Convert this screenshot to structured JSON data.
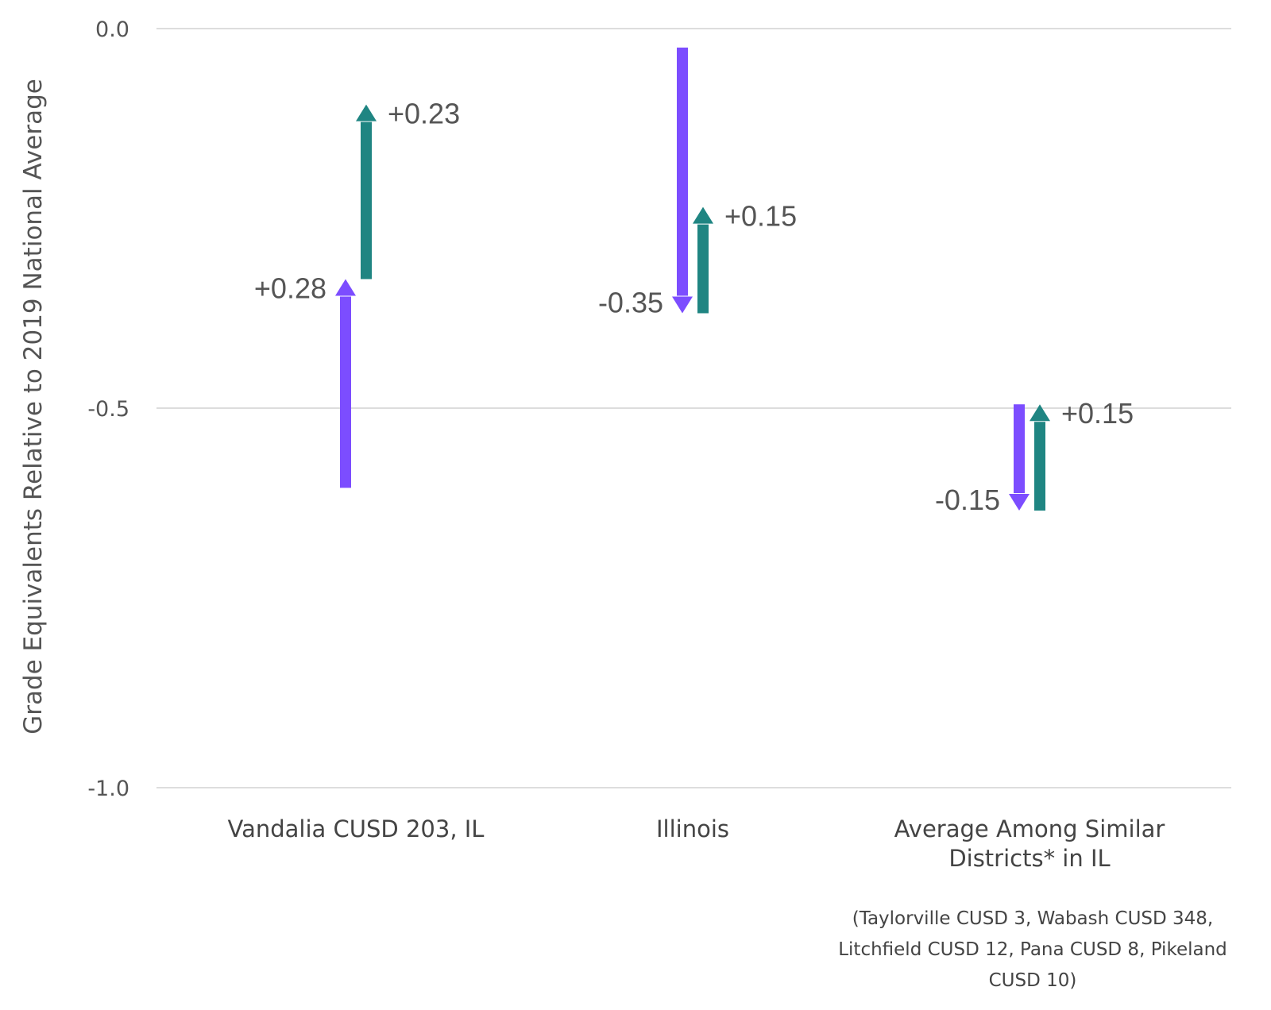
{
  "chart_data": {
    "type": "arrow",
    "ylabel": "Grade Equivalents Relative to 2019 National Average",
    "ylim": [
      -1.0,
      0.0
    ],
    "yticks": [
      {
        "value": 0.0,
        "label": "0.0"
      },
      {
        "value": -0.5,
        "label": "-0.5"
      },
      {
        "value": -1.0,
        "label": "-1.0"
      }
    ],
    "grid": true,
    "categories": [
      {
        "label_lines": [
          "Vandalia CUSD 203, IL"
        ],
        "arrows": [
          {
            "series": "purple",
            "start": -0.605,
            "end": -0.33,
            "label": "+0.28"
          },
          {
            "series": "teal",
            "start": -0.33,
            "end": -0.1,
            "label": "+0.23"
          }
        ]
      },
      {
        "label_lines": [
          "Illinois"
        ],
        "arrows": [
          {
            "series": "purple",
            "start": -0.025,
            "end": -0.375,
            "label": "-0.35"
          },
          {
            "series": "teal",
            "start": -0.375,
            "end": -0.235,
            "label": "+0.15"
          }
        ]
      },
      {
        "label_lines": [
          "Average Among Similar",
          "Districts* in IL"
        ],
        "arrows": [
          {
            "series": "purple",
            "start": -0.495,
            "end": -0.635,
            "label": "-0.15"
          },
          {
            "series": "teal",
            "start": -0.635,
            "end": -0.495,
            "label": "+0.15"
          }
        ]
      }
    ],
    "colors": {
      "purple": "#7c4dff",
      "teal": "#1f8582"
    }
  },
  "footnote_lines": [
    "(Taylorville CUSD 3, Wabash CUSD 348,",
    "Litchfield CUSD 12, Pana CUSD 8, Pikeland",
    "CUSD 10)"
  ]
}
